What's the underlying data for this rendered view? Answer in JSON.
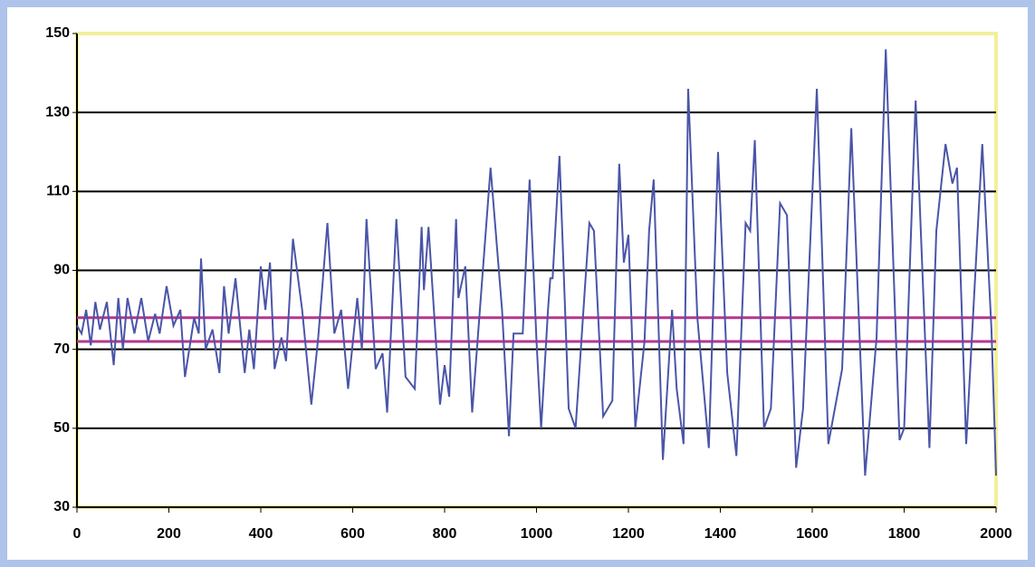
{
  "chart_data": {
    "type": "line",
    "x": [
      0,
      10,
      20,
      30,
      40,
      50,
      65,
      80,
      90,
      100,
      110,
      125,
      140,
      155,
      170,
      180,
      195,
      210,
      225,
      235,
      255,
      265,
      270,
      280,
      295,
      310,
      320,
      330,
      345,
      365,
      375,
      385,
      400,
      410,
      420,
      430,
      445,
      455,
      470,
      490,
      510,
      525,
      545,
      560,
      575,
      590,
      610,
      620,
      630,
      650,
      665,
      675,
      695,
      715,
      735,
      750,
      755,
      765,
      790,
      800,
      810,
      825,
      830,
      845,
      860,
      900,
      925,
      940,
      950,
      970,
      985,
      1000,
      1010,
      1025,
      1030,
      1035,
      1050,
      1070,
      1085,
      1105,
      1115,
      1125,
      1145,
      1165,
      1180,
      1190,
      1200,
      1215,
      1235,
      1245,
      1255,
      1275,
      1295,
      1305,
      1320,
      1330,
      1350,
      1375,
      1395,
      1415,
      1435,
      1455,
      1465,
      1475,
      1495,
      1510,
      1530,
      1545,
      1565,
      1580,
      1610,
      1635,
      1665,
      1685,
      1715,
      1740,
      1760,
      1790,
      1800,
      1825,
      1855,
      1870,
      1890,
      1905,
      1915,
      1935,
      1970,
      1990,
      2000
    ],
    "series": [
      {
        "color": "#4a55a8",
        "values": [
          76,
          74,
          80,
          71,
          82,
          75,
          82,
          66,
          83,
          70,
          83,
          74,
          83,
          72,
          79,
          74,
          86,
          76,
          80,
          63,
          78,
          74,
          93,
          70,
          75,
          64,
          86,
          74,
          88,
          64,
          75,
          65,
          91,
          80,
          92,
          65,
          73,
          67,
          98,
          80,
          56,
          73,
          102,
          74,
          80,
          60,
          83,
          70,
          103,
          65,
          69,
          54,
          103,
          63,
          60,
          101,
          85,
          101,
          56,
          66,
          58,
          103,
          83,
          91,
          54,
          116,
          80,
          48,
          74,
          74,
          113,
          72,
          50,
          80,
          88,
          88,
          119,
          55,
          50,
          85,
          102,
          100,
          53,
          57,
          117,
          92,
          99,
          50,
          72,
          100,
          113,
          42,
          80,
          60,
          46,
          136,
          78,
          45,
          120,
          64,
          43,
          102,
          100,
          123,
          50,
          55,
          107,
          104,
          40,
          55,
          136,
          46,
          65,
          126,
          38,
          73,
          146,
          47,
          50,
          133,
          45,
          100,
          122,
          112,
          116,
          46,
          122,
          75,
          38
        ]
      }
    ],
    "reference_lines": [
      78,
      72
    ],
    "reference_color": "#b5378f",
    "xlim": [
      0,
      2000
    ],
    "xticks": [
      0,
      200,
      400,
      600,
      800,
      1000,
      1200,
      1400,
      1600,
      1800,
      2000
    ],
    "ylim": [
      30,
      150
    ],
    "yticks": [
      30,
      50,
      70,
      90,
      110,
      130,
      150
    ],
    "grid": true
  }
}
